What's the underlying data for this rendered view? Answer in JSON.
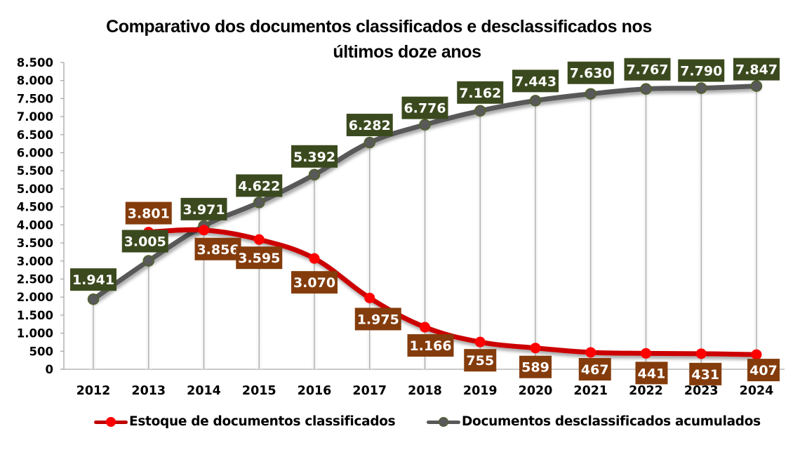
{
  "title": {
    "line1": "Comparativo dos documentos classificados e desclassificados nos",
    "line2": "últimos doze anos"
  },
  "colors": {
    "red_line": "#CC0000",
    "red_marker": "#FF0000",
    "red_label_bg": "#843C0C",
    "grey_line": "#595959",
    "grey_marker": "#595959",
    "grey_marker_border": "#4F6228",
    "grey_label_bg": "#3B4A1E",
    "gridline": "#A6A6A6",
    "axis": "#A6A6A6"
  },
  "legend": {
    "items": [
      {
        "label": "Estoque de documentos classificados"
      },
      {
        "label": "Documentos desclassificados acumulados"
      }
    ]
  },
  "chart_data": {
    "type": "line",
    "title": "Comparativo dos documentos classificados e desclassificados nos últimos doze anos",
    "xlabel": "",
    "ylabel": "",
    "ylim": [
      0,
      8500
    ],
    "yticks": [
      0,
      500,
      1000,
      1500,
      2000,
      2500,
      3000,
      3500,
      4000,
      4500,
      5000,
      5500,
      6000,
      6500,
      7000,
      7500,
      8000,
      8500
    ],
    "ytick_labels": [
      "0",
      "500",
      "1.000",
      "1.500",
      "2.000",
      "2.500",
      "3.000",
      "3.500",
      "4.000",
      "4.500",
      "5.000",
      "5.500",
      "6.000",
      "6.500",
      "7.000",
      "7.500",
      "8.000",
      "8.500"
    ],
    "categories": [
      "2012",
      "2013",
      "2014",
      "2015",
      "2016",
      "2017",
      "2018",
      "2019",
      "2020",
      "2021",
      "2022",
      "2023",
      "2024"
    ],
    "grid": "vertical drop lines",
    "legend_position": "bottom",
    "series": [
      {
        "name": "Estoque de documentos classificados",
        "values": [
          null,
          3801,
          3856,
          3595,
          3070,
          1975,
          1166,
          755,
          589,
          467,
          441,
          431,
          407
        ],
        "labels": [
          null,
          "3.801",
          "3.856",
          "3.595",
          "3.070",
          "1.975",
          "1.166",
          "755",
          "589",
          "467",
          "441",
          "431",
          "407"
        ]
      },
      {
        "name": "Documentos desclassificados acumulados",
        "values": [
          1941,
          3005,
          3971,
          4622,
          5392,
          6282,
          6776,
          7162,
          7443,
          7630,
          7767,
          7790,
          7847
        ],
        "labels": [
          "1.941",
          "3.005",
          "3.971",
          "4.622",
          "5.392",
          "6.282",
          "6.776",
          "7.162",
          "7.443",
          "7.630",
          "7.767",
          "7.790",
          "7.847"
        ]
      }
    ]
  }
}
